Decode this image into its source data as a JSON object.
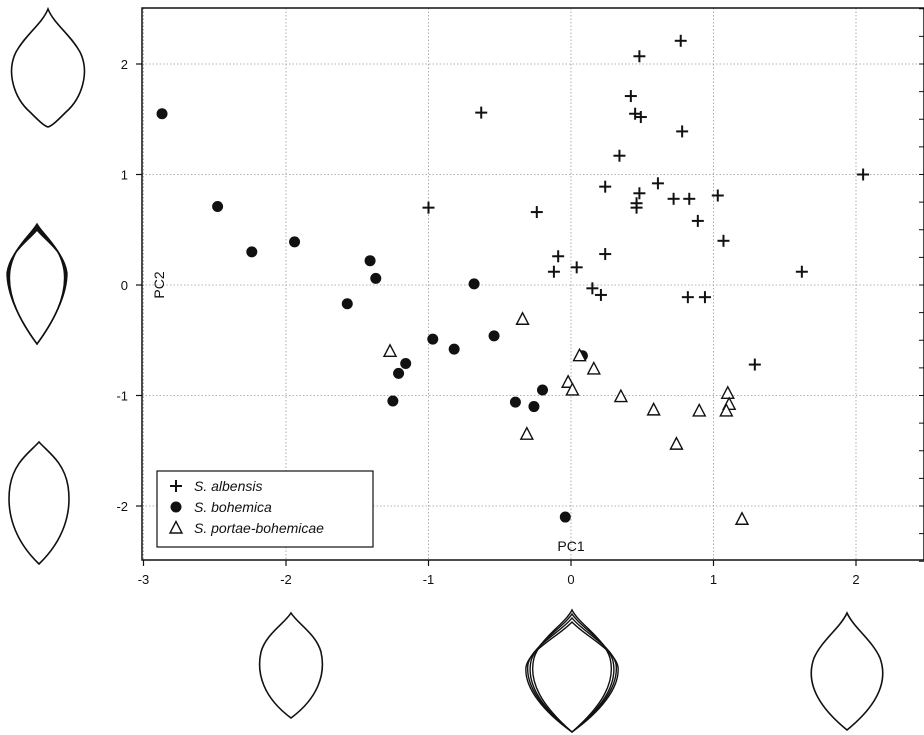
{
  "chart_data": {
    "type": "scatter",
    "title": "",
    "xlabel": "PC1",
    "ylabel": "PC2",
    "xlim": [
      -3,
      2.5
    ],
    "ylim": [
      -2.5,
      2.5
    ],
    "xticks": [
      -3,
      -2,
      -1,
      0,
      1,
      2
    ],
    "yticks": [
      -2,
      -1,
      0,
      1,
      2
    ],
    "xtick_labels": [
      "-3",
      "-2",
      "-1",
      "0",
      "1",
      "2"
    ],
    "ytick_labels": [
      "-2",
      "-1",
      "0",
      "1",
      "2"
    ],
    "grid": true,
    "legend_position": "bottom-left",
    "series": [
      {
        "name": "S. albensis",
        "marker": "plus",
        "points": [
          [
            0.48,
            2.07
          ],
          [
            0.77,
            2.21
          ],
          [
            0.42,
            1.71
          ],
          [
            0.45,
            1.55
          ],
          [
            0.49,
            1.52
          ],
          [
            -0.63,
            1.56
          ],
          [
            0.78,
            1.39
          ],
          [
            0.34,
            1.17
          ],
          [
            0.61,
            0.92
          ],
          [
            0.24,
            0.89
          ],
          [
            0.48,
            0.83
          ],
          [
            0.46,
            0.74
          ],
          [
            0.46,
            0.7
          ],
          [
            0.72,
            0.78
          ],
          [
            0.83,
            0.78
          ],
          [
            1.03,
            0.81
          ],
          [
            0.89,
            0.58
          ],
          [
            1.07,
            0.4
          ],
          [
            -1.0,
            0.7
          ],
          [
            -0.24,
            0.66
          ],
          [
            -0.09,
            0.26
          ],
          [
            -0.12,
            0.12
          ],
          [
            0.04,
            0.16
          ],
          [
            0.24,
            0.28
          ],
          [
            0.15,
            -0.03
          ],
          [
            0.21,
            -0.09
          ],
          [
            0.82,
            -0.11
          ],
          [
            0.94,
            -0.11
          ],
          [
            1.62,
            0.12
          ],
          [
            1.29,
            -0.72
          ],
          [
            2.05,
            1.0
          ]
        ]
      },
      {
        "name": "S. bohemica",
        "marker": "filled-circle",
        "points": [
          [
            -2.87,
            1.55
          ],
          [
            -2.48,
            0.71
          ],
          [
            -2.24,
            0.3
          ],
          [
            -1.94,
            0.39
          ],
          [
            -1.41,
            0.22
          ],
          [
            -1.37,
            0.06
          ],
          [
            -1.57,
            -0.17
          ],
          [
            -0.68,
            0.01
          ],
          [
            -0.97,
            -0.49
          ],
          [
            -0.82,
            -0.58
          ],
          [
            -0.54,
            -0.46
          ],
          [
            -1.16,
            -0.71
          ],
          [
            -1.21,
            -0.8
          ],
          [
            -1.25,
            -1.05
          ],
          [
            -0.39,
            -1.06
          ],
          [
            -0.26,
            -1.1
          ],
          [
            -0.2,
            -0.95
          ],
          [
            0.08,
            -0.64
          ],
          [
            -0.04,
            -2.1
          ]
        ]
      },
      {
        "name": "S. portae-bohemicae",
        "marker": "open-triangle",
        "points": [
          [
            -1.27,
            -0.6
          ],
          [
            -0.34,
            -0.31
          ],
          [
            0.06,
            -0.64
          ],
          [
            0.16,
            -0.76
          ],
          [
            -0.02,
            -0.88
          ],
          [
            0.01,
            -0.95
          ],
          [
            0.35,
            -1.01
          ],
          [
            0.58,
            -1.13
          ],
          [
            0.9,
            -1.14
          ],
          [
            1.1,
            -0.98
          ],
          [
            1.11,
            -1.08
          ],
          [
            1.09,
            -1.14
          ],
          [
            0.74,
            -1.44
          ],
          [
            -0.31,
            -1.35
          ],
          [
            1.2,
            -2.12
          ]
        ]
      }
    ]
  }
}
